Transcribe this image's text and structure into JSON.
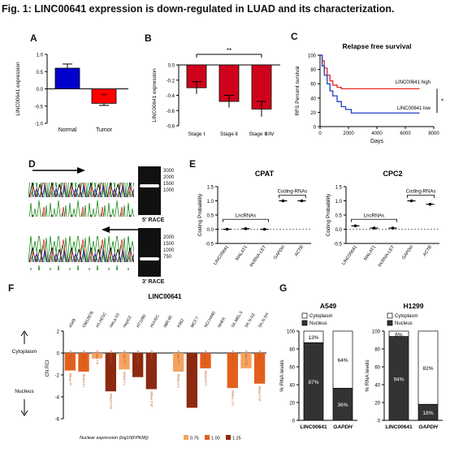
{
  "figure_title": "Fig. 1: LINC00641 expression is down-regulated in LUAD and its characterization.",
  "panels": {
    "A": "A",
    "B": "B",
    "C": "C",
    "D": "D",
    "E": "E",
    "F": "F",
    "G": "G"
  },
  "race": {
    "five_label": "5' RACE",
    "three_label": "3' RACE",
    "ladder_top": [
      "3000",
      "2000",
      "1500",
      "1000"
    ],
    "ladder_bottom": [
      "2000",
      "1500",
      "1000",
      "750"
    ]
  },
  "colors": {
    "normal": "#0000cc",
    "tumor": "#ff0000",
    "stage": "#d0021b",
    "km_high": "#e8281e",
    "km_low": "#1f3fbf",
    "f_light": "#f4a460",
    "f_mid": "#e2601c",
    "f_dark": "#8b2a10",
    "g_dark": "#333333"
  },
  "chart_data": [
    {
      "panel": "A",
      "type": "bar",
      "categories": [
        "Normal",
        "Tumor"
      ],
      "values": [
        0.6,
        -0.42
      ],
      "errors": [
        0.12,
        0.06
      ],
      "colors": [
        "#0000cc",
        "#ff0000"
      ],
      "ylabel": "LINC00641 expression",
      "ylim": [
        -1.0,
        1.0
      ],
      "yticks": [
        "1.0",
        "0.5",
        "0.0",
        "-0.5",
        "-1.0"
      ],
      "annotation": "**"
    },
    {
      "panel": "B",
      "type": "bar",
      "categories": [
        "Stage Ⅰ",
        "Stage Ⅱ",
        "Stage Ⅲ/Ⅳ"
      ],
      "values": [
        -0.3,
        -0.48,
        -0.58
      ],
      "errors": [
        0.08,
        0.08,
        0.1
      ],
      "ylabel": "LINC00641 expression",
      "ylim": [
        -0.8,
        0.0
      ],
      "yticks": [
        "0.0",
        "-0.2",
        "-0.4",
        "-0.6",
        "-0.8"
      ],
      "annotation": "**"
    },
    {
      "panel": "C",
      "type": "line",
      "title": "Relapse free survival",
      "xlabel": "Days",
      "ylabel": "RFS Percent survival",
      "xlim": [
        0,
        8000
      ],
      "ylim": [
        0,
        100
      ],
      "xticks": [
        "0",
        "2000",
        "4000",
        "6000",
        "8000"
      ],
      "yticks": [
        "100",
        "80",
        "60",
        "40",
        "20",
        "0"
      ],
      "series": [
        {
          "name": "LINC00641 high",
          "x": [
            0,
            150,
            300,
            500,
            700,
            900,
            1200,
            1500,
            2000,
            2500,
            3500,
            5000,
            7000
          ],
          "y": [
            100,
            92,
            82,
            72,
            64,
            58,
            55,
            53,
            53,
            53,
            53,
            53,
            53
          ]
        },
        {
          "name": "LINC00641 low",
          "x": [
            0,
            150,
            300,
            500,
            700,
            900,
            1200,
            1500,
            1800,
            2200,
            3000,
            5000,
            7000
          ],
          "y": [
            100,
            85,
            72,
            60,
            50,
            43,
            35,
            28,
            24,
            19,
            19,
            19,
            19
          ]
        }
      ],
      "annotation": "*"
    },
    {
      "panel": "E-CPAT",
      "type": "scatter",
      "title": "CPAT",
      "ylabel": "Coding Probability",
      "ylim": [
        -0.5,
        1.5
      ],
      "yticks": [
        "1.5",
        "1.0",
        "0.5",
        "0.0",
        "-0.5"
      ],
      "categories": [
        "LINC00641",
        "MALAT1",
        "lncRNA-LET",
        "GAPDH",
        "ACTB"
      ],
      "values": [
        0.0,
        0.02,
        0.0,
        1.0,
        1.0
      ],
      "groups": [
        "LncRNAs",
        "Coding-RNAs"
      ]
    },
    {
      "panel": "E-CPC2",
      "type": "scatter",
      "title": "CPC2",
      "ylabel": "Coding Probability",
      "ylim": [
        -0.5,
        1.5
      ],
      "yticks": [
        "1.5",
        "1.0",
        "0.5",
        "0.0",
        "-0.5"
      ],
      "categories": [
        "LINC00641",
        "MALAT1",
        "lncRNA-LET",
        "GAPDH",
        "ACTB"
      ],
      "values": [
        0.12,
        0.04,
        0.04,
        1.0,
        0.88
      ],
      "groups": [
        "LncRNAs",
        "Coding-RNAs"
      ]
    },
    {
      "panel": "F",
      "type": "bar",
      "title": "LINC00641",
      "ylabel": "CN RCI",
      "ylim": [
        -6,
        2
      ],
      "yticks": [
        "2",
        "0",
        "-2",
        "-4",
        "-6"
      ],
      "side_labels": [
        "Cytoplasm",
        "Nucleus"
      ],
      "categories": [
        "A549",
        "GM12878",
        "H1.hESC",
        "HeLa.S3",
        "HepG2",
        "HT1080",
        "HUVEC",
        "IMR.90",
        "K562",
        "MCF.7",
        "NCI.H460",
        "NHEK",
        "SK.MEL.5",
        "SK.N.DZ",
        "SK.N.SH"
      ],
      "values": [
        -1.6,
        -1.7,
        -0.5,
        -3.5,
        -1.5,
        -2.2,
        -3.3,
        0,
        -1.7,
        -5.0,
        -1.4,
        0,
        -3.2,
        -1.4,
        -2.8
      ],
      "expression_labels": [
        "12 FPKM",
        "7.4 FPKM",
        "",
        "20.3 FPKM",
        "7.2 FPKM",
        "",
        "28.3 FPKM",
        "",
        "3.9 FPKM",
        "",
        "11.8 FPKM",
        "",
        "10.7 FPKM",
        "",
        "19.4 FPKM"
      ],
      "cyto_labels": [
        "3.7 FPKM",
        "2.3 FPKM",
        "6.2 FPKM",
        "5.5 FPKM",
        "2.2 FPKM",
        "0.6 FPKM",
        "4 FPKM",
        "",
        "1.9 FPKM",
        "",
        "0.7 FPKM",
        "",
        "5.4 FPKM",
        "10.2 FPKM",
        "2 FPKM"
      ],
      "shade": [
        "mid",
        "mid",
        "light",
        "dark",
        "light",
        "dark",
        "dark",
        "",
        "light",
        "dark",
        "mid",
        "",
        "mid",
        "light",
        "mid"
      ],
      "legend_title": "Nuclear expression (log10(FPKM))",
      "legend_items": [
        "0.75",
        "1.00",
        "1.25"
      ]
    },
    {
      "panel": "G",
      "type": "bar",
      "stacked": true,
      "ylabel": "% RNA levels",
      "ylim": [
        0,
        100
      ],
      "yticks": [
        "100",
        "80",
        "60",
        "40",
        "20",
        "0"
      ],
      "legend": [
        "Cytoplasm",
        "Nucleus"
      ],
      "charts": [
        {
          "title": "A549",
          "categories": [
            "LINC00641",
            "GAPDH"
          ],
          "nucleus": [
            87,
            36
          ],
          "cytoplasm": [
            13,
            64
          ],
          "nucleus_labels": [
            "87%",
            "36%"
          ],
          "cytoplasm_labels": [
            "13%",
            "64%"
          ]
        },
        {
          "title": "H1299",
          "categories": [
            "LINC00641",
            "GAPDH"
          ],
          "nucleus": [
            94,
            18
          ],
          "cytoplasm": [
            6,
            82
          ],
          "nucleus_labels": [
            "94%",
            "18%"
          ],
          "cytoplasm_labels": [
            "6%",
            "82%"
          ]
        }
      ]
    }
  ]
}
